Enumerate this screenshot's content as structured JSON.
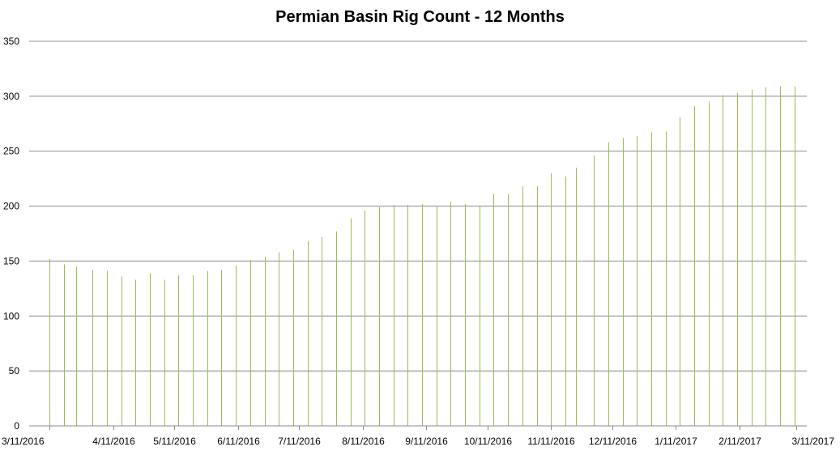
{
  "chart_data": {
    "type": "bar",
    "title": "Permian Basin Rig Count - 12 Months",
    "xlabel": "",
    "ylabel": "",
    "ylim": [
      0,
      350
    ],
    "yticks": [
      0,
      50,
      100,
      150,
      200,
      250,
      300,
      350
    ],
    "grid": true,
    "legend": "none",
    "bar_color": "#9bbb59",
    "grid_color": "#8c8c8c",
    "x_tick_labels": [
      "3/11/2016",
      "4/11/2016",
      "5/11/2016",
      "6/11/2016",
      "7/11/2016",
      "8/11/2016",
      "9/11/2016",
      "10/11/2016",
      "11/11/2016",
      "12/11/2016",
      "1/11/2017",
      "2/11/2017",
      "3/11/2017"
    ],
    "x_tick_dates": [
      "2016-03-11",
      "2016-04-11",
      "2016-05-11",
      "2016-06-11",
      "2016-07-11",
      "2016-08-11",
      "2016-09-11",
      "2016-10-11",
      "2016-11-11",
      "2016-12-11",
      "2017-01-11",
      "2017-02-11",
      "2017-03-11"
    ],
    "x_range": [
      "2016-03-01",
      "2017-03-16"
    ],
    "x": [
      "2016-03-11",
      "2016-03-18",
      "2016-03-24",
      "2016-04-01",
      "2016-04-08",
      "2016-04-15",
      "2016-04-22",
      "2016-04-29",
      "2016-05-06",
      "2016-05-13",
      "2016-05-20",
      "2016-05-27",
      "2016-06-03",
      "2016-06-10",
      "2016-06-17",
      "2016-06-24",
      "2016-07-01",
      "2016-07-08",
      "2016-07-15",
      "2016-07-22",
      "2016-07-29",
      "2016-08-05",
      "2016-08-12",
      "2016-08-19",
      "2016-08-26",
      "2016-09-02",
      "2016-09-09",
      "2016-09-16",
      "2016-09-23",
      "2016-09-30",
      "2016-10-07",
      "2016-10-14",
      "2016-10-21",
      "2016-10-28",
      "2016-11-04",
      "2016-11-11",
      "2016-11-18",
      "2016-11-23",
      "2016-12-02",
      "2016-12-09",
      "2016-12-16",
      "2016-12-23",
      "2016-12-30",
      "2017-01-06",
      "2017-01-13",
      "2017-01-20",
      "2017-01-27",
      "2017-02-03",
      "2017-02-10",
      "2017-02-17",
      "2017-02-24",
      "2017-03-03",
      "2017-03-10"
    ],
    "values": [
      152,
      147,
      145,
      142,
      141,
      136,
      133,
      139,
      133,
      137,
      137,
      141,
      142,
      146,
      151,
      154,
      158,
      160,
      168,
      172,
      177,
      189,
      196,
      199,
      201,
      201,
      202,
      200,
      204,
      202,
      200,
      211,
      211,
      218,
      218,
      230,
      227,
      235,
      246,
      258,
      262,
      264,
      267,
      268,
      281,
      291,
      295,
      301,
      303,
      306,
      308,
      309,
      309
    ]
  }
}
